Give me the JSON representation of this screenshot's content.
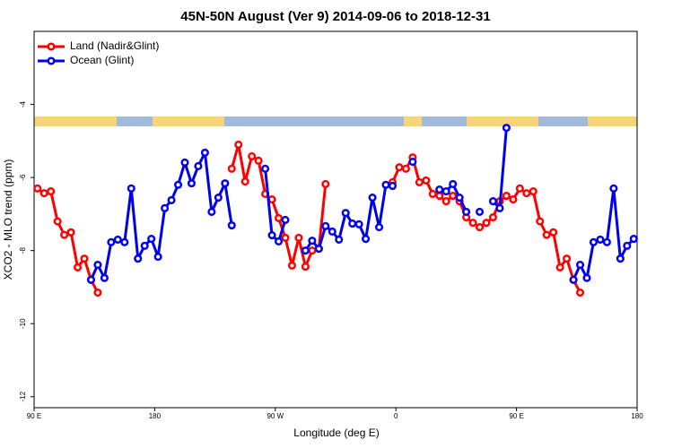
{
  "chart_data": {
    "type": "line",
    "title": "45N-50N August (Ver 9)   2014-09-06 to 2018-12-31",
    "x_label": "Longitude (deg E)",
    "y_label": "XCO2 - MLO trend (ppm)",
    "x": [
      92.5,
      97.5,
      102.5,
      107.5,
      112.5,
      117.5,
      122.5,
      127.5,
      132.5,
      137.5,
      142.5,
      147.5,
      152.5,
      157.5,
      162.5,
      167.5,
      172.5,
      177.5,
      182.5,
      187.5,
      192.5,
      197.5,
      202.5,
      207.5,
      212.5,
      217.5,
      222.5,
      227.5,
      232.5,
      237.5,
      242.5,
      247.5,
      252.5,
      257.5,
      262.5,
      267.5,
      272.5,
      277.5,
      282.5,
      287.5,
      292.5,
      297.5,
      302.5,
      307.5,
      312.5,
      317.5,
      322.5,
      327.5,
      332.5,
      337.5,
      342.5,
      347.5,
      352.5,
      357.5,
      362.5,
      367.5,
      372.5,
      377.5,
      382.5,
      387.5,
      392.5,
      397.5,
      402.5,
      407.5,
      412.5,
      417.5,
      422.5,
      427.5,
      432.5,
      437.5,
      442.5,
      447.5,
      452.5,
      457.5,
      462.5,
      467.5,
      472.5,
      477.5,
      482.5,
      487.5,
      492.5,
      497.5,
      502.5,
      507.5,
      512.5,
      517.5,
      522.5,
      527.5,
      532.5,
      537.5
    ],
    "series": [
      {
        "name": "Land (Nadir&Glint)",
        "color": "#ff0000",
        "values": [
          -6.3,
          -6.43,
          -6.38,
          -7.2,
          -7.57,
          -7.5,
          -8.46,
          -8.22,
          -8.8,
          -9.15,
          null,
          null,
          null,
          null,
          null,
          null,
          null,
          null,
          null,
          null,
          null,
          null,
          null,
          null,
          null,
          null,
          null,
          null,
          null,
          -5.76,
          -5.1,
          -6.11,
          -5.42,
          -5.54,
          -6.45,
          -6.6,
          -7.11,
          -7.65,
          -8.41,
          -7.65,
          -8.44,
          -8.0,
          -7.95,
          -6.18,
          null,
          null,
          null,
          null,
          null,
          null,
          null,
          null,
          null,
          -6.13,
          -5.72,
          -5.76,
          -5.45,
          -6.13,
          -6.08,
          -6.45,
          -6.5,
          -6.65,
          -6.5,
          -6.65,
          -7.09,
          -7.24,
          -7.36,
          -7.24,
          -7.09,
          -6.65,
          -6.5,
          -6.6,
          -6.3,
          -6.43,
          -6.38,
          -7.2,
          -7.57,
          -7.5,
          -8.46,
          -8.22,
          -8.8,
          -9.15,
          null,
          null,
          null,
          null,
          null,
          null,
          null,
          null
        ]
      },
      {
        "name": "Ocean (Glint)",
        "color": "#0000ee",
        "values": [
          null,
          null,
          null,
          null,
          null,
          null,
          null,
          null,
          -8.8,
          -8.39,
          -8.75,
          -7.77,
          -7.7,
          -7.77,
          -6.3,
          -8.22,
          -7.87,
          -7.68,
          -8.17,
          -6.84,
          -6.62,
          -6.2,
          -5.59,
          -6.16,
          -5.69,
          -5.32,
          -6.94,
          -6.55,
          -6.16,
          -7.31,
          null,
          null,
          null,
          null,
          -5.76,
          -7.58,
          -7.75,
          -7.16,
          null,
          null,
          -8.0,
          -7.73,
          -7.95,
          -7.33,
          -7.48,
          -7.7,
          -6.97,
          -7.26,
          -7.28,
          -7.68,
          -6.55,
          -7.36,
          -6.2,
          -6.23,
          null,
          null,
          -5.57,
          null,
          null,
          null,
          -6.33,
          -6.38,
          -6.18,
          -6.55,
          -6.94,
          null,
          -6.94,
          null,
          -6.65,
          -6.84,
          -4.64,
          null,
          null,
          null,
          null,
          null,
          null,
          null,
          null,
          null,
          -8.8,
          -8.39,
          -8.75,
          -7.77,
          -7.7,
          -7.77,
          -6.3,
          -8.22,
          -7.87,
          -7.68
        ]
      }
    ],
    "xlim": [
      90,
      540
    ],
    "xticks": [
      {
        "value": 90,
        "label": "90 E"
      },
      {
        "value": 180,
        "label": "180"
      },
      {
        "value": 270,
        "label": "90 W"
      },
      {
        "value": 360,
        "label": "0"
      },
      {
        "value": 450,
        "label": "90 E"
      },
      {
        "value": 540,
        "label": "180"
      }
    ],
    "ylim": [
      -12.3,
      -2
    ],
    "yticks": [
      -4,
      -6,
      -8,
      -10,
      -12
    ],
    "grid": false,
    "legend": "upper left"
  }
}
